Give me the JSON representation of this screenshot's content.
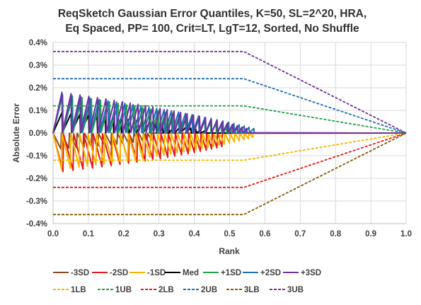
{
  "chart_data": {
    "type": "line",
    "title_lines": [
      "ReqSketch Gaussian Error Quantiles, K=50, SL=2^20,  HRA,",
      "Eq Spaced, PP= 100, Crit=LT, LgT=12, Sorted, No Shuffle"
    ],
    "xlabel": "Rank",
    "ylabel": "Absolute Error",
    "xlim": [
      0,
      1
    ],
    "ylim": [
      -0.004,
      0.004
    ],
    "x_ticks": [
      0,
      0.1,
      0.2,
      0.3,
      0.4,
      0.5,
      0.6,
      0.7,
      0.8,
      0.9,
      1.0
    ],
    "x_tick_labels": [
      "0.0",
      "0.1",
      "0.2",
      "0.3",
      "0.4",
      "0.5",
      "0.6",
      "0.7",
      "0.8",
      "0.9",
      "1.0"
    ],
    "y_ticks": [
      0.004,
      0.003,
      0.002,
      0.001,
      0,
      -0.001,
      -0.002,
      -0.003,
      -0.004
    ],
    "y_tick_labels": [
      "0.4%",
      "0.3%",
      "0.2%",
      "0.1%",
      "0.0%",
      "-0.1%",
      "-0.2%",
      "-0.3%",
      "-0.4%"
    ],
    "grid": true,
    "legend_position": "bottom",
    "series": [
      {
        "name": "-3SD",
        "color": "#8B4A1E",
        "dash": false,
        "sawtooth": {
          "teeth": 16,
          "amp_start": -0.0007,
          "amp_end": -0.0003,
          "width": 0.022
        }
      },
      {
        "name": "-2SD",
        "color": "#E31A1C",
        "dash": false,
        "sawtooth": {
          "teeth": 22,
          "amp_start": -0.0017,
          "amp_end": -0.0006,
          "width": 0.028
        }
      },
      {
        "name": "-1SD",
        "color": "#F7B500",
        "dash": false,
        "sawtooth": {
          "teeth": 30,
          "amp_start": -0.0016,
          "amp_end": -0.0002,
          "width": 0.024
        }
      },
      {
        "name": "Med",
        "color": "#000000",
        "dash": false,
        "sawtooth": {
          "teeth": 22,
          "amp_start": 0.0009,
          "amp_end": 0.0001,
          "width": 0.025
        }
      },
      {
        "name": "+1SD",
        "color": "#22A04A",
        "dash": false,
        "sawtooth": {
          "teeth": 24,
          "amp_start": 0.0017,
          "amp_end": 0.0002,
          "width": 0.027
        }
      },
      {
        "name": "+2SD",
        "color": "#1F6FB5",
        "dash": false,
        "sawtooth": {
          "teeth": 28,
          "amp_start": 0.0017,
          "amp_end": 0.0002,
          "width": 0.026
        }
      },
      {
        "name": "+3SD",
        "color": "#7030A0",
        "dash": false,
        "sawtooth": {
          "teeth": 28,
          "amp_start": 0.0018,
          "amp_end": 0.0002,
          "width": 0.025
        }
      },
      {
        "name": "1LB",
        "color": "#F7B500",
        "dash": true,
        "x": [
          0,
          0.54,
          1.0
        ],
        "y": [
          -0.0012,
          -0.0012,
          0
        ]
      },
      {
        "name": "1UB",
        "color": "#22A04A",
        "dash": true,
        "x": [
          0,
          0.54,
          1.0
        ],
        "y": [
          0.0012,
          0.0012,
          0
        ]
      },
      {
        "name": "2LB",
        "color": "#E31A1C",
        "dash": true,
        "x": [
          0,
          0.54,
          1.0
        ],
        "y": [
          -0.0024,
          -0.0024,
          0
        ]
      },
      {
        "name": "2UB",
        "color": "#1F6FB5",
        "dash": true,
        "x": [
          0,
          0.54,
          1.0
        ],
        "y": [
          0.0024,
          0.0024,
          0
        ]
      },
      {
        "name": "3LB",
        "color": "#8B5A00",
        "dash": true,
        "x": [
          0,
          0.54,
          1.0
        ],
        "y": [
          -0.0036,
          -0.0036,
          0
        ]
      },
      {
        "name": "3UB",
        "color": "#7030A0",
        "dash": true,
        "x": [
          0,
          0.54,
          1.0
        ],
        "y": [
          0.0036,
          0.0036,
          0
        ]
      }
    ]
  }
}
